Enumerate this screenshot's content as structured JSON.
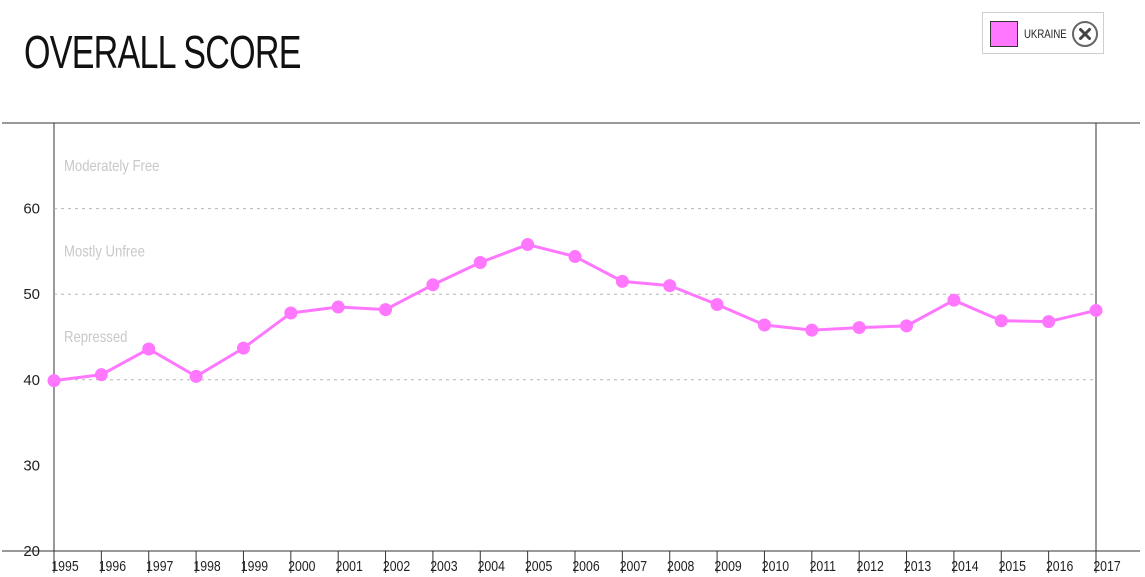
{
  "title": "OVERALL SCORE",
  "legend": {
    "label": "UKRAINE",
    "close_icon": "close-circle-icon",
    "color": "#ff77ff"
  },
  "colors": {
    "series": "#ff77ff",
    "axis": "#333333",
    "grid": "#b5b5b5",
    "zone_text": "#c8c8c8",
    "tick_text": "#222222"
  },
  "chart_data": {
    "type": "line",
    "title": "OVERALL SCORE",
    "xlabel": "",
    "ylabel": "",
    "x": [
      "1995",
      "1996",
      "1997",
      "1998",
      "1999",
      "2000",
      "2001",
      "2002",
      "2003",
      "2004",
      "2005",
      "2006",
      "2007",
      "2008",
      "2009",
      "2010",
      "2011",
      "2012",
      "2013",
      "2014",
      "2015",
      "2016",
      "2017"
    ],
    "series": [
      {
        "name": "UKRAINE",
        "color": "#ff77ff",
        "values": [
          39.9,
          40.6,
          43.6,
          40.4,
          43.7,
          47.8,
          48.5,
          48.2,
          51.1,
          53.7,
          55.8,
          54.4,
          51.5,
          51.0,
          48.8,
          46.4,
          45.8,
          46.1,
          46.3,
          49.3,
          46.9,
          46.8,
          48.1
        ]
      }
    ],
    "ylim": [
      20,
      70
    ],
    "yticks": [
      20,
      30,
      40,
      50,
      60
    ],
    "grid_lines": [
      40,
      50,
      60
    ],
    "grid": "dotted horizontal at zone boundaries",
    "zones": [
      {
        "label": "Moderately Free",
        "y": 65
      },
      {
        "label": "Mostly Unfree",
        "y": 55
      },
      {
        "label": "Repressed",
        "y": 45
      }
    ],
    "legend_position": "top-right"
  }
}
